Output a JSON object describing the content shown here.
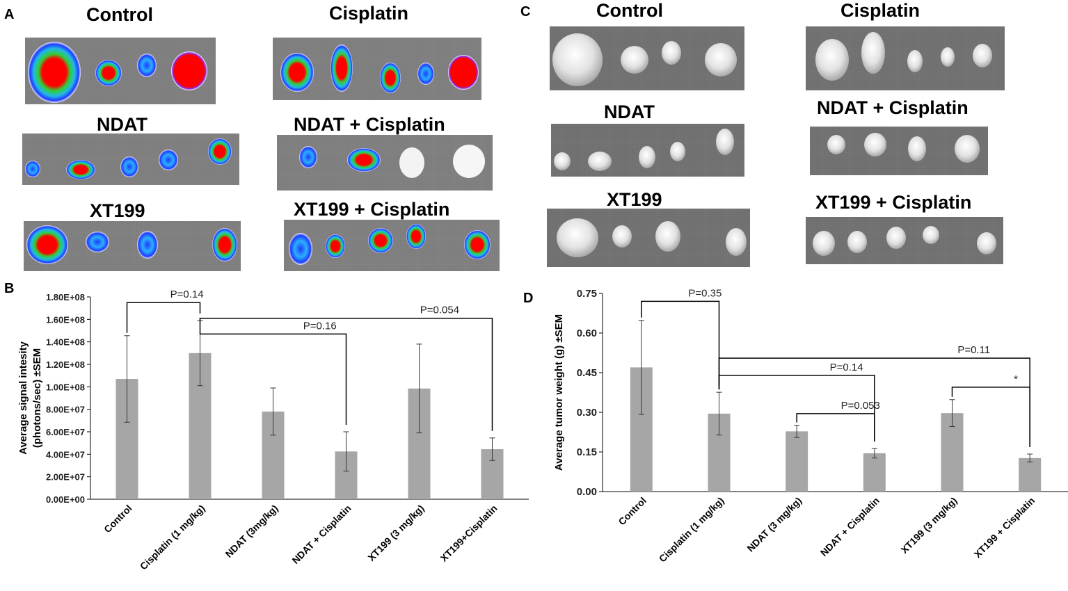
{
  "panels": {
    "A": "A",
    "B": "B",
    "C": "C",
    "D": "D"
  },
  "imaging_groups": [
    {
      "title": "Control",
      "blobs": 4
    },
    {
      "title": "Cisplatin",
      "blobs": 5
    },
    {
      "title": "NDAT",
      "blobs": 5
    },
    {
      "title": "NDAT + Cisplatin",
      "blobs": 4
    },
    {
      "title": "XT199",
      "blobs": 4
    },
    {
      "title": "XT199 + Cisplatin",
      "blobs": 5
    }
  ],
  "tumor_groups": [
    {
      "title": "Control",
      "blobs": 4
    },
    {
      "title": "Cisplatin",
      "blobs": 5
    },
    {
      "title": "NDAT",
      "blobs": 5
    },
    {
      "title": "NDAT + Cisplatin",
      "blobs": 4
    },
    {
      "title": "XT199",
      "blobs": 4
    },
    {
      "title": "XT199 + Cisplatin",
      "blobs": 5
    }
  ],
  "colors": {
    "bar": "#a6a6a6",
    "axis": "#000000",
    "strip": "#7b7b7b",
    "signal_red": "#ff0000",
    "signal_green": "#33cc33",
    "signal_blue": "#1e3cff"
  },
  "chart_data": [
    {
      "id": "B",
      "type": "bar",
      "title": "",
      "xlabel": "",
      "ylabel": "Average signal intesity (photons/sec) ±SEM",
      "ylabel_lines": [
        "Average signal intesity",
        "(photons/sec) ±SEM"
      ],
      "categories": [
        "Control",
        "Cisplatin (1 mg/kg)",
        "NDAT (3mg/kg)",
        "NDAT + Cisplatin",
        "XT199 (3 mg/kg)",
        "XT199+Cisplatin"
      ],
      "values": [
        107000000,
        130000000,
        78000000,
        42500000,
        98500000,
        44500000
      ],
      "errors": [
        38500000,
        29000000,
        21000000,
        17500000,
        39500000,
        10000000
      ],
      "ylim": [
        0,
        180000000
      ],
      "yticks": [
        0,
        20000000,
        40000000,
        60000000,
        80000000,
        100000000,
        120000000,
        140000000,
        160000000,
        180000000
      ],
      "ytick_labels": [
        "0.00E+00",
        "2.00E+07",
        "4.00E+07",
        "6.00E+07",
        "8.00E+07",
        "1.00E+08",
        "1.20E+08",
        "1.40E+08",
        "1.60E+08",
        "1.80E+08"
      ],
      "comparisons": [
        {
          "from": 0,
          "to": 1,
          "label": "P=0.14",
          "level": 175000000
        },
        {
          "from": 1,
          "to": 5,
          "label": "P=0.054",
          "level": 161000000
        },
        {
          "from": 1,
          "to": 3,
          "label": "P=0.16",
          "level": 147000000
        }
      ]
    },
    {
      "id": "D",
      "type": "bar",
      "title": "",
      "xlabel": "",
      "ylabel": "Average tumor weight (g) ±SEM",
      "ylabel_lines": [
        "Average tumor weight (g) ±SEM"
      ],
      "categories": [
        "Control",
        "Cisplatin  (1 mg/kg)",
        "NDAT (3 mg/kg)",
        "NDAT + Cisplatin",
        "XT199 (3 mg/kg)",
        "XT199 + Cisplatin"
      ],
      "values": [
        0.47,
        0.295,
        0.228,
        0.145,
        0.297,
        0.127
      ],
      "errors": [
        0.178,
        0.081,
        0.023,
        0.018,
        0.051,
        0.015
      ],
      "ylim": [
        0,
        0.75
      ],
      "yticks": [
        0,
        0.15,
        0.3,
        0.45,
        0.6,
        0.75
      ],
      "ytick_labels": [
        "0.00",
        "0.15",
        "0.30",
        "0.45",
        "0.60",
        "0.75"
      ],
      "comparisons": [
        {
          "from": 0,
          "to": 1,
          "label": "P=0.35",
          "level": 0.72
        },
        {
          "from": 1,
          "to": 5,
          "label": "P=0.11",
          "level": 0.505
        },
        {
          "from": 1,
          "to": 3,
          "label": "P=0.14",
          "level": 0.44
        },
        {
          "from": 2,
          "to": 3,
          "label": "P=0.053",
          "level": 0.295
        },
        {
          "from": 4,
          "to": 5,
          "label": "*",
          "level": 0.395
        }
      ]
    }
  ]
}
